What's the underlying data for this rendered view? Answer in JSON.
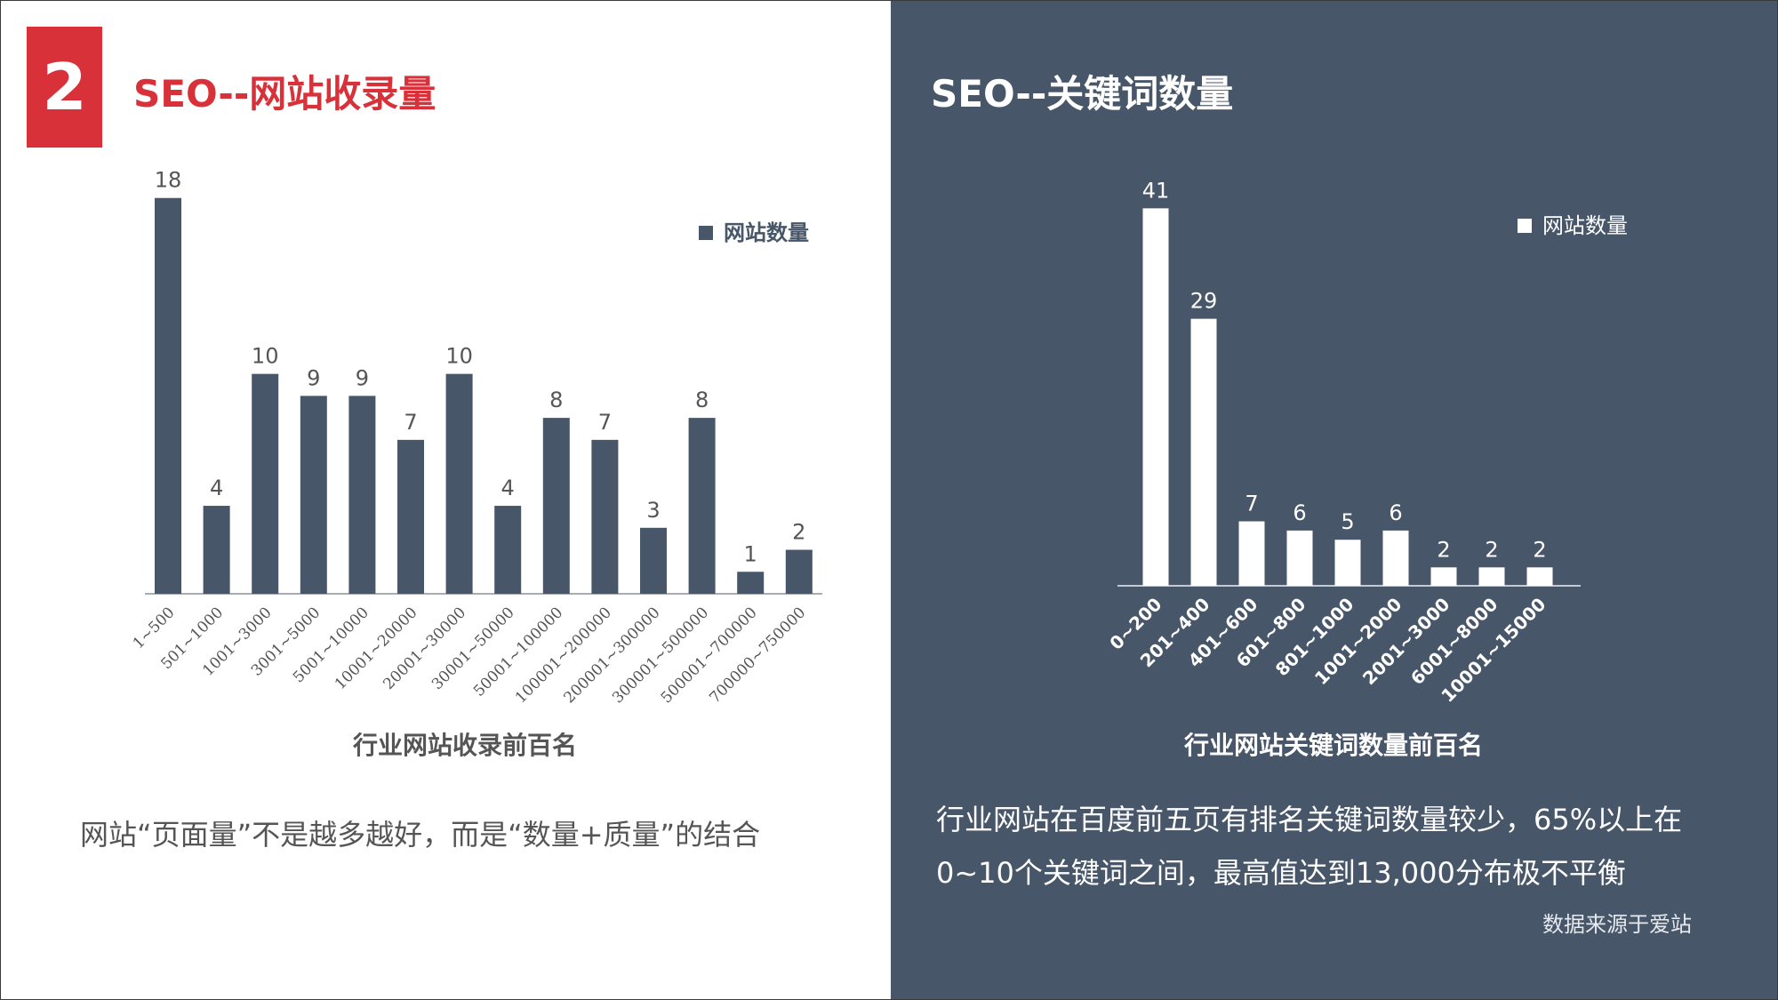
{
  "left": {
    "badge": "2",
    "title": "SEO--网站收录量",
    "description": "网站“页面量”不是越多越好，而是“数量+质量”的结合"
  },
  "right": {
    "title": "SEO--关键词数量",
    "description_line1": "行业网站在百度前五页有排名关键词数量较少，65%以上在",
    "description_line2": "0~10个关键词之间，最高值达到13,000分布极不平衡",
    "source": "数据来源于爱站"
  },
  "colors": {
    "accent_red": "#d9313a",
    "dark_panel": "#475669",
    "bar_dark": "#475669",
    "bar_white": "#ffffff"
  },
  "chart_data": [
    {
      "type": "bar",
      "title": "",
      "xlabel": "行业网站收录前百名",
      "ylabel": "",
      "ylim": [
        0,
        19
      ],
      "legend": "right",
      "categories": [
        "1~500",
        "501~1000",
        "1001~3000",
        "3001~5000",
        "5001~10000",
        "10001~20000",
        "20001~30000",
        "30001~50000",
        "50001~100000",
        "100001~200000",
        "200001~300000",
        "300001~500000",
        "500001~700000",
        "700000~750000"
      ],
      "series": [
        {
          "name": "网站数量",
          "values": [
            18,
            4,
            10,
            9,
            9,
            7,
            10,
            4,
            8,
            7,
            3,
            8,
            1,
            2
          ]
        }
      ]
    },
    {
      "type": "bar",
      "title": "",
      "xlabel": "行业网站关键词数量前百名",
      "ylabel": "",
      "ylim": [
        0,
        42
      ],
      "legend": "right",
      "categories": [
        "0~200",
        "201~400",
        "401~600",
        "601~800",
        "801~1000",
        "1001~2000",
        "2001~3000",
        "6001~8000",
        "10001~15000"
      ],
      "series": [
        {
          "name": "网站数量",
          "values": [
            41,
            29,
            7,
            6,
            5,
            6,
            2,
            2,
            2
          ]
        }
      ]
    }
  ]
}
